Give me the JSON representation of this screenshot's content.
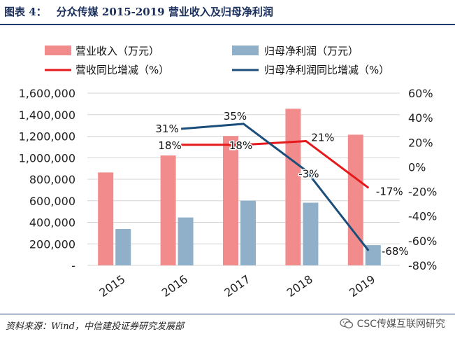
{
  "figure": {
    "label": "图表 4：",
    "title": "分众传媒 2015-2019 营业收入及归母净利润",
    "source": "资料来源：Wind，中信建投证券研究发展部",
    "watermark": "CSC传媒互联网研究"
  },
  "chart_data": {
    "type": "bar+line",
    "categories": [
      "2015",
      "2016",
      "2017",
      "2018",
      "2019"
    ],
    "bar_series": [
      {
        "name": "营业收入（万元）",
        "color": "#f28b8c",
        "values": [
          863000,
          1021000,
          1201000,
          1455000,
          1214000
        ]
      },
      {
        "name": "归母净利润（万元）",
        "color": "#8fb0c8",
        "values": [
          338000,
          445000,
          601000,
          582000,
          188000
        ]
      }
    ],
    "line_series": [
      {
        "name": "营收同比增减（%）",
        "color": "#e5191c",
        "x": [
          "2016",
          "2017",
          "2018",
          "2019"
        ],
        "values": [
          18,
          18,
          21,
          -17
        ],
        "labels": [
          "18%",
          "18%",
          "21%",
          "-17%"
        ]
      },
      {
        "name": "归母净利润同比增减（%）",
        "color": "#1b4e7a",
        "x": [
          "2016",
          "2017",
          "2018",
          "2019"
        ],
        "values": [
          31,
          35,
          -3,
          -68
        ],
        "labels": [
          "31%",
          "35%",
          "-3%",
          "-68%"
        ]
      }
    ],
    "y_left": {
      "min": 0,
      "max": 1600000,
      "step": 200000,
      "tick_labels": [
        "-",
        "200,000",
        "400,000",
        "600,000",
        "800,000",
        "1,000,000",
        "1,200,000",
        "1,400,000",
        "1,600,000"
      ]
    },
    "y_right": {
      "min": -80,
      "max": 60,
      "step": 20,
      "tick_labels": [
        "-80%",
        "-60%",
        "-40%",
        "-20%",
        "0%",
        "20%",
        "40%",
        "60%"
      ]
    },
    "grid": true,
    "legend_position": "top"
  }
}
